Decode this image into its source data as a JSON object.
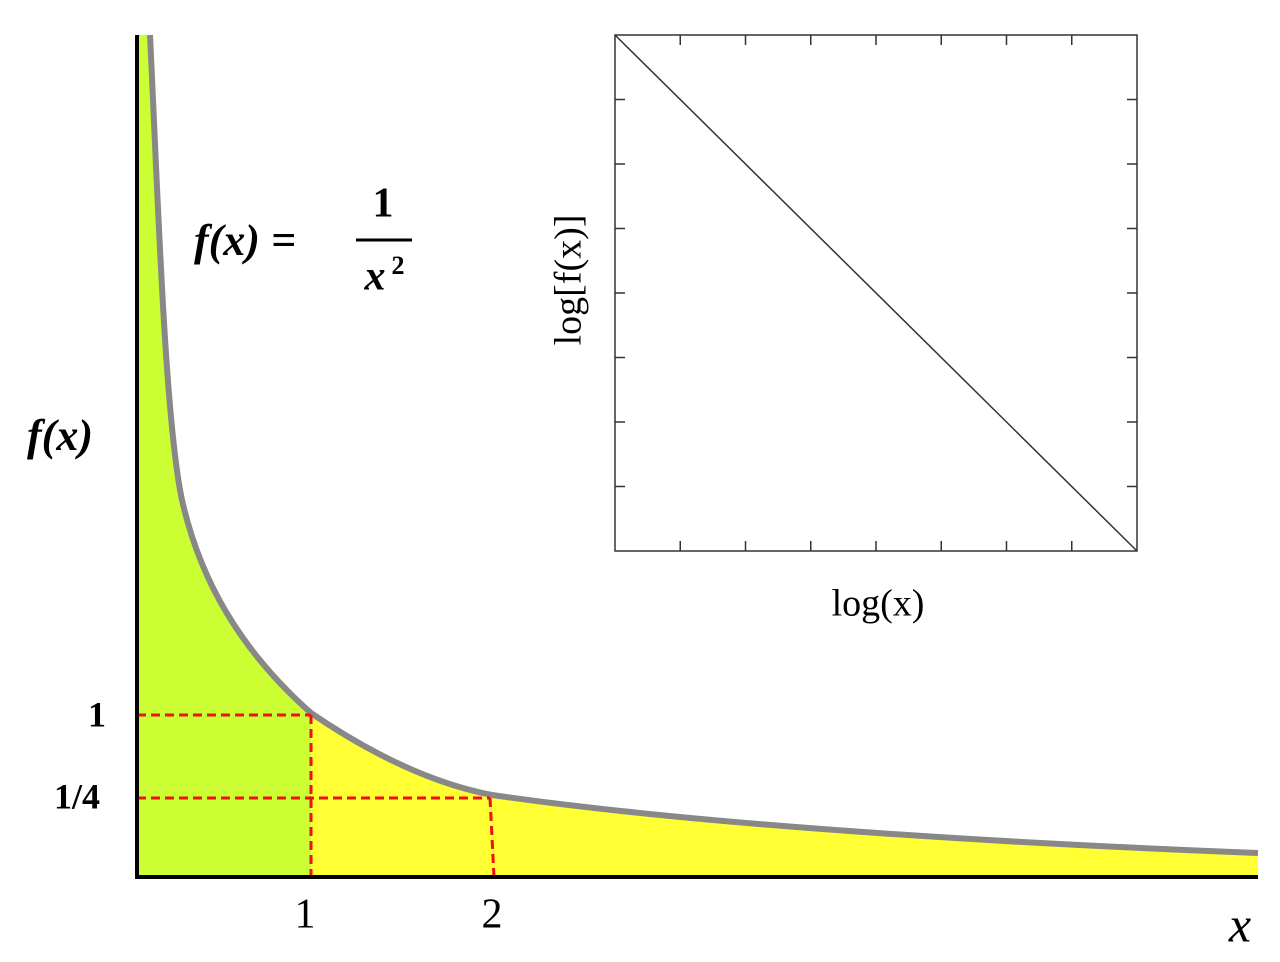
{
  "formula": {
    "lhs": "f(x) =",
    "numerator": "1",
    "denominator": "x",
    "exponent": "2"
  },
  "main_axes": {
    "y_label": "f(x)",
    "x_label": "x",
    "y_ticks": [
      "1",
      "1/4"
    ],
    "x_ticks": [
      "1",
      "2"
    ]
  },
  "inset": {
    "x_label": "log(x)",
    "y_label": "log[f(x)]"
  }
}
